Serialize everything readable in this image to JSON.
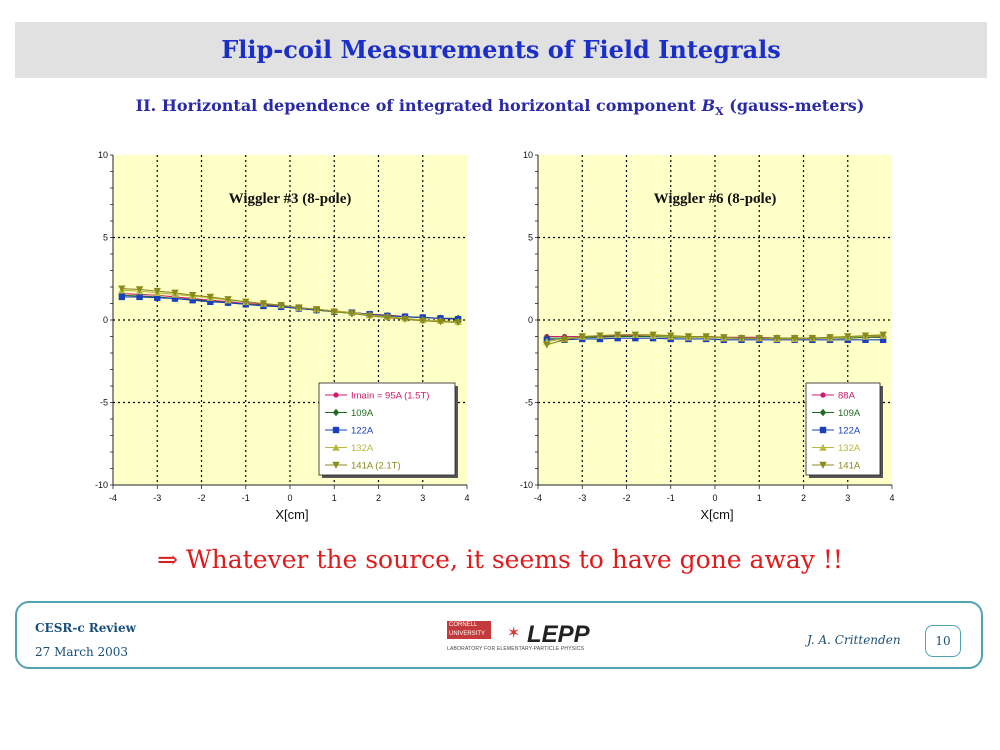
{
  "slide": {
    "title": "Flip-coil Measurements of Field Integrals",
    "subtitle_pre": "II. Horizontal dependence of integrated horizontal component ",
    "subtitle_sym": "B",
    "subtitle_sub": "X",
    "subtitle_post": " (gauss-meters)",
    "conclusion": "⇒ Whatever the source, it seems to have gone away !!"
  },
  "footer": {
    "left_title": "CESR-c Review",
    "date": "27 March 2003",
    "author": "J. A. Crittenden",
    "page": "10",
    "logo_university": "CORNELL UNIVERSITY",
    "logo_text": "LEPP",
    "logo_lab": "LABORATORY FOR ELEMENTARY-PARTICLE PHYSICS"
  },
  "colors": {
    "plot_bg": "#ffffc8",
    "grid": "#000000",
    "title_blue": "#1a2ec9",
    "conclusion_red": "#e01b1b",
    "footer_border": "#4fa3b3"
  },
  "chart_data": [
    {
      "type": "line",
      "annotation": "Wiggler #3 (8-pole)",
      "xlabel": "X[cm]",
      "xlim": [
        -4,
        4
      ],
      "ylim": [
        -10,
        10
      ],
      "xticks": [
        "-4",
        "-3",
        "-2",
        "-1",
        "0",
        "1",
        "2",
        "3",
        "4"
      ],
      "yticks": [
        "-10",
        "-5",
        "0",
        "5",
        "10"
      ],
      "grid": true,
      "legend_position": "bottom-right",
      "x": [
        -3.8,
        -3.4,
        -3.0,
        -2.6,
        -2.2,
        -1.8,
        -1.4,
        -1.0,
        -0.6,
        -0.2,
        0.2,
        0.6,
        1.0,
        1.4,
        1.8,
        2.2,
        2.6,
        3.0,
        3.4,
        3.8
      ],
      "series": [
        {
          "name": "Imain = 95A (1.5T)",
          "color": "#d01c6e",
          "marker": "circle",
          "values": [
            1.6,
            1.55,
            1.5,
            1.4,
            1.3,
            1.2,
            1.1,
            1.0,
            0.95,
            0.85,
            0.75,
            0.65,
            0.55,
            0.45,
            0.35,
            0.3,
            0.2,
            0.15,
            0.1,
            0.05
          ]
        },
        {
          "name": "109A",
          "color": "#1f6b1f",
          "marker": "diamond",
          "values": [
            1.5,
            1.45,
            1.4,
            1.3,
            1.25,
            1.15,
            1.05,
            0.95,
            0.9,
            0.8,
            0.7,
            0.6,
            0.5,
            0.4,
            0.35,
            0.25,
            0.2,
            0.15,
            0.1,
            0.1
          ]
        },
        {
          "name": "122A",
          "color": "#1a3fbf",
          "marker": "square",
          "values": [
            1.4,
            1.4,
            1.35,
            1.3,
            1.2,
            1.1,
            1.05,
            0.95,
            0.85,
            0.8,
            0.7,
            0.6,
            0.5,
            0.45,
            0.35,
            0.25,
            0.2,
            0.15,
            0.1,
            0.05
          ]
        },
        {
          "name": "132A",
          "color": "#b8b840",
          "marker": "triangle",
          "values": [
            1.8,
            1.75,
            1.65,
            1.55,
            1.45,
            1.35,
            1.2,
            1.1,
            1.0,
            0.9,
            0.75,
            0.65,
            0.55,
            0.45,
            0.3,
            0.2,
            0.1,
            0.0,
            -0.05,
            -0.1
          ]
        },
        {
          "name": "141A (2.1T)",
          "color": "#8a8a1a",
          "marker": "triangle-down",
          "values": [
            1.9,
            1.85,
            1.75,
            1.65,
            1.5,
            1.4,
            1.25,
            1.1,
            1.0,
            0.9,
            0.75,
            0.65,
            0.5,
            0.4,
            0.25,
            0.15,
            0.05,
            -0.05,
            -0.1,
            -0.15
          ]
        }
      ]
    },
    {
      "type": "line",
      "annotation": "Wiggler #6 (8-pole)",
      "xlabel": "X[cm]",
      "xlim": [
        -4,
        4
      ],
      "ylim": [
        -10,
        10
      ],
      "xticks": [
        "-4",
        "-3",
        "-2",
        "-1",
        "0",
        "1",
        "2",
        "3",
        "4"
      ],
      "yticks": [
        "-10",
        "-5",
        "0",
        "5",
        "10"
      ],
      "grid": true,
      "legend_position": "bottom-right",
      "x": [
        -3.8,
        -3.4,
        -3.0,
        -2.6,
        -2.2,
        -1.8,
        -1.4,
        -1.0,
        -0.6,
        -0.2,
        0.2,
        0.6,
        1.0,
        1.4,
        1.8,
        2.2,
        2.6,
        3.0,
        3.4,
        3.8
      ],
      "series": [
        {
          "name": "88A",
          "color": "#d01c6e",
          "marker": "circle",
          "values": [
            -1.0,
            -1.0,
            -1.0,
            -1.0,
            -0.95,
            -0.95,
            -0.95,
            -1.0,
            -1.0,
            -1.0,
            -1.05,
            -1.05,
            -1.05,
            -1.1,
            -1.1,
            -1.1,
            -1.05,
            -1.05,
            -1.05,
            -1.0
          ]
        },
        {
          "name": "109A",
          "color": "#1f6b1f",
          "marker": "diamond",
          "values": [
            -1.1,
            -1.1,
            -1.05,
            -1.05,
            -1.0,
            -1.0,
            -1.0,
            -1.05,
            -1.05,
            -1.05,
            -1.1,
            -1.1,
            -1.1,
            -1.1,
            -1.1,
            -1.1,
            -1.1,
            -1.1,
            -1.05,
            -1.05
          ]
        },
        {
          "name": "122A",
          "color": "#1a3fbf",
          "marker": "square",
          "values": [
            -1.2,
            -1.2,
            -1.15,
            -1.15,
            -1.1,
            -1.1,
            -1.1,
            -1.15,
            -1.15,
            -1.15,
            -1.2,
            -1.2,
            -1.2,
            -1.2,
            -1.2,
            -1.2,
            -1.2,
            -1.2,
            -1.2,
            -1.2
          ]
        },
        {
          "name": "132A",
          "color": "#b8b840",
          "marker": "triangle",
          "values": [
            -1.3,
            -1.15,
            -1.0,
            -0.95,
            -0.9,
            -0.9,
            -0.95,
            -1.0,
            -1.05,
            -1.05,
            -1.1,
            -1.1,
            -1.1,
            -1.15,
            -1.15,
            -1.1,
            -1.1,
            -1.05,
            -1.0,
            -0.95
          ]
        },
        {
          "name": "141A",
          "color": "#8a8a1a",
          "marker": "triangle-down",
          "values": [
            -1.5,
            -1.2,
            -1.0,
            -0.95,
            -0.9,
            -0.9,
            -0.9,
            -0.95,
            -1.0,
            -1.0,
            -1.05,
            -1.1,
            -1.1,
            -1.1,
            -1.1,
            -1.1,
            -1.05,
            -1.0,
            -0.95,
            -0.9
          ]
        }
      ]
    }
  ]
}
